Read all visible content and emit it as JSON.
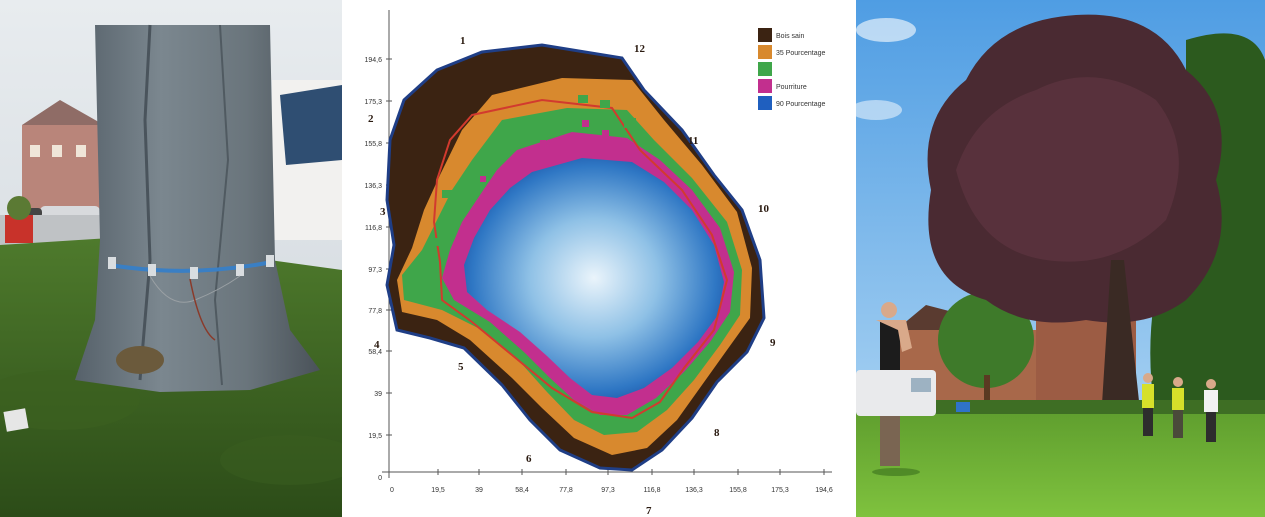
{
  "tomogram": {
    "y_ticks": [
      "194,6",
      "175,3",
      "155,8",
      "136,3",
      "116,8",
      "97,3",
      "77,8",
      "58,4",
      "39",
      "19,5",
      "0"
    ],
    "x_ticks": [
      "0",
      "19,5",
      "39",
      "58,4",
      "77,8",
      "97,3",
      "116,8",
      "136,3",
      "155,8",
      "175,3",
      "194,6"
    ],
    "sensors": [
      "1",
      "2",
      "3",
      "4",
      "5",
      "6",
      "7",
      "8",
      "9",
      "10",
      "11",
      "12"
    ],
    "legend": [
      {
        "label": "Bois sain",
        "color": "#3b2312"
      },
      {
        "label": "35 Pourcentage",
        "color": "#d8892e"
      },
      {
        "label": "",
        "color": "#3fa64a"
      },
      {
        "label": "Pourriture",
        "color": "#c22f8e"
      },
      {
        "label": "90 Pourcentage",
        "color": "#1f5fbf"
      }
    ]
  }
}
